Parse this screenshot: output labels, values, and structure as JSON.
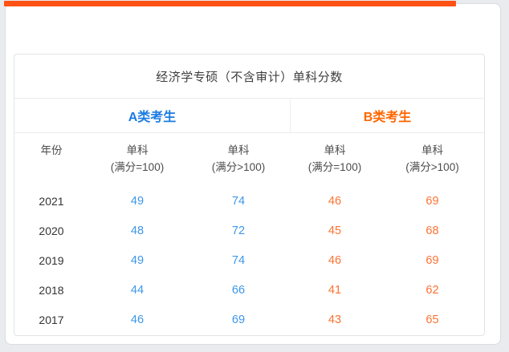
{
  "page": {
    "background_color": "#e9ebee",
    "panel_color": "#ffffff"
  },
  "progress_bar": {
    "color": "#ff5214",
    "approx_fill_percent": 89
  },
  "card": {
    "title": "经济学专硕（不含审计）单科分数",
    "groups": [
      {
        "label": "A类考生",
        "color": "#1b7ce2"
      },
      {
        "label": "B类考生",
        "color": "#ff6600"
      }
    ],
    "columns": {
      "year_label": "年份",
      "subject_headers": [
        {
          "line1": "单科",
          "line2": "(满分=100)"
        },
        {
          "line1": "单科",
          "line2": "(满分>100)"
        },
        {
          "line1": "单科",
          "line2": "(满分=100)"
        },
        {
          "line1": "单科",
          "line2": "(满分>100)"
        }
      ]
    },
    "value_colors": {
      "a_class": "#3c97e9",
      "b_class": "#fd7233"
    },
    "rows": [
      {
        "year": "2021",
        "values": [
          "49",
          "74",
          "46",
          "69"
        ]
      },
      {
        "year": "2020",
        "values": [
          "48",
          "72",
          "45",
          "68"
        ]
      },
      {
        "year": "2019",
        "values": [
          "49",
          "74",
          "46",
          "69"
        ]
      },
      {
        "year": "2018",
        "values": [
          "44",
          "66",
          "41",
          "62"
        ]
      },
      {
        "year": "2017",
        "values": [
          "46",
          "69",
          "43",
          "65"
        ]
      }
    ]
  }
}
